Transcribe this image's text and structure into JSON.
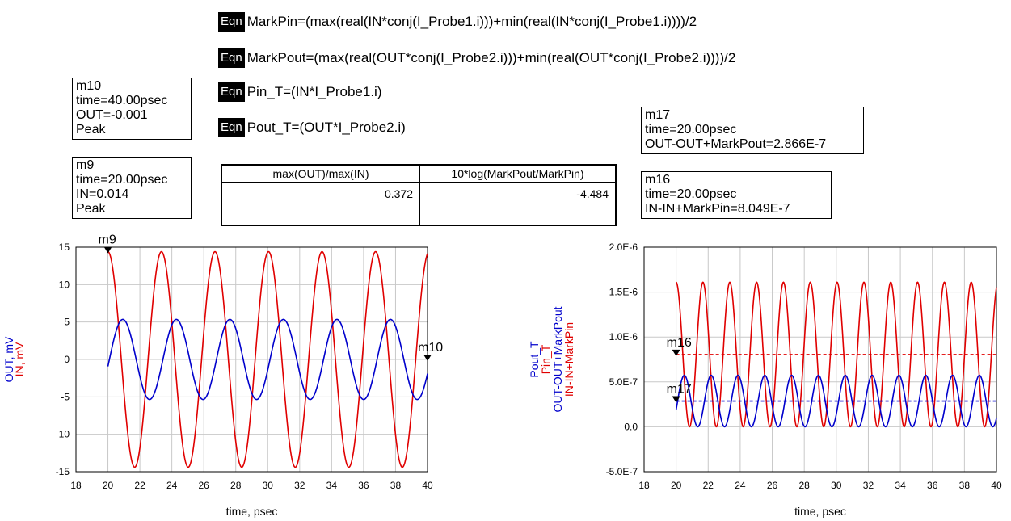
{
  "equations": [
    {
      "badge": "Eqn",
      "text": "MarkPin=(max(real(IN*conj(I_Probe1.i)))+min(real(IN*conj(I_Probe1.i))))/2"
    },
    {
      "badge": "Eqn",
      "text": "MarkPout=(max(real(OUT*conj(I_Probe2.i)))+min(real(OUT*conj(I_Probe2.i))))/2"
    },
    {
      "badge": "Eqn",
      "text": "Pin_T=(IN*I_Probe1.i)"
    },
    {
      "badge": "Eqn",
      "text": "Pout_T=(OUT*I_Probe2.i)"
    }
  ],
  "markers": {
    "m10": {
      "name": "m10",
      "line1": "time=40.00psec",
      "line2": "OUT=-0.001",
      "line3": "Peak"
    },
    "m9": {
      "name": "m9",
      "line1": "time=20.00psec",
      "line2": "IN=0.014",
      "line3": "Peak"
    },
    "m17": {
      "name": "m17",
      "line1": "time=20.00psec",
      "line2": "OUT-OUT+MarkPout=2.866E-7"
    },
    "m16": {
      "name": "m16",
      "line1": "time=20.00psec",
      "line2": "IN-IN+MarkPin=8.049E-7"
    }
  },
  "table": {
    "headers": [
      "max(OUT)/max(IN)",
      "10*log(MarkPout/MarkPin)"
    ],
    "values": [
      "0.372",
      "-4.484"
    ]
  },
  "colors": {
    "red": "#e00000",
    "blue": "#0000cc",
    "grid": "#c8c8c8"
  },
  "chart_data": [
    {
      "type": "line",
      "xlabel": "time, psec",
      "ylabel_lines": [
        {
          "text": "OUT, mV",
          "color": "#0000cc"
        },
        {
          "text": "IN, mV",
          "color": "#e00000"
        }
      ],
      "xlim": [
        18,
        40
      ],
      "ylim": [
        -15,
        15
      ],
      "xticks": [
        "18",
        "20",
        "22",
        "24",
        "26",
        "28",
        "30",
        "32",
        "34",
        "36",
        "38",
        "40"
      ],
      "yticks": [
        "-15",
        "-10",
        "-5",
        "0",
        "5",
        "10",
        "15"
      ],
      "grid": true,
      "series": [
        {
          "name": "IN",
          "color": "#e00000",
          "unit": "mV",
          "t_start": 20,
          "t_end": 40,
          "amplitude": 14.4,
          "offset": 0,
          "period": 3.35,
          "phase_deg": 90
        },
        {
          "name": "OUT",
          "color": "#0000cc",
          "unit": "mV",
          "t_start": 20,
          "t_end": 40,
          "amplitude": 5.35,
          "offset": 0,
          "period": 3.35,
          "phase_deg": -10
        }
      ],
      "markers": [
        {
          "label": "m9",
          "x": 20,
          "y": 14.4
        },
        {
          "label": "m10",
          "x": 40,
          "y": -0.001
        }
      ]
    },
    {
      "type": "line",
      "xlabel": "time, psec",
      "ylabel_lines": [
        {
          "text": "Pout_T",
          "color": "#0000cc"
        },
        {
          "text": "Pin_T",
          "color": "#e00000"
        },
        {
          "text": "OUT-OUT+MarkPout",
          "color": "#0000cc"
        },
        {
          "text": "IN-IN+MarkPin",
          "color": "#e00000"
        }
      ],
      "xlim": [
        18,
        40
      ],
      "ylim": [
        -5e-07,
        2e-06
      ],
      "xticks": [
        "18",
        "20",
        "22",
        "24",
        "26",
        "28",
        "30",
        "32",
        "34",
        "36",
        "38",
        "40"
      ],
      "ytick_values": [
        -5e-07,
        0,
        5e-07,
        1e-06,
        1.5e-06,
        2e-06
      ],
      "yticks": [
        "-5.0E-7",
        "0.0",
        "5.0E-7",
        "1.0E-6",
        "1.5E-6",
        "2.0E-6"
      ],
      "grid": true,
      "series": [
        {
          "name": "Pin_T",
          "color": "#e00000",
          "t_start": 20,
          "t_end": 40,
          "mean": 8.049e-07,
          "amplitude": 8.049e-07,
          "period": 1.675,
          "phase_deg": 90
        },
        {
          "name": "Pout_T",
          "color": "#0000cc",
          "t_start": 20,
          "t_end": 40,
          "mean": 2.866e-07,
          "amplitude": 2.866e-07,
          "period": 1.675,
          "phase_deg": -20
        },
        {
          "name": "IN-IN+MarkPin",
          "color": "#e00000",
          "dashed": true,
          "constant": 8.049e-07,
          "t_start": 20,
          "t_end": 40
        },
        {
          "name": "OUT-OUT+MarkPout",
          "color": "#0000cc",
          "dashed": true,
          "constant": 2.866e-07,
          "t_start": 20,
          "t_end": 40
        }
      ],
      "markers": [
        {
          "label": "m16",
          "x": 20,
          "y": 8.049e-07
        },
        {
          "label": "m17",
          "x": 20,
          "y": 2.866e-07
        }
      ]
    }
  ]
}
